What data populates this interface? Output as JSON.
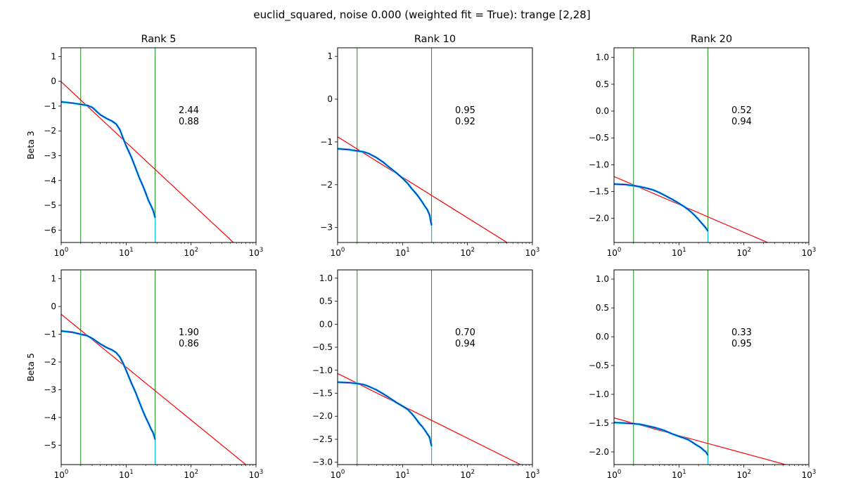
{
  "figure": {
    "suptitle": "euclid_squared, noise 0.000 (weighted fit = True): trange [2,28]"
  },
  "colors": {
    "fit_line": "#ff0000",
    "range_line": "#008000",
    "data_line": "#00008b",
    "data_band": "#00bfff"
  },
  "chart_data": [
    {
      "type": "line",
      "title": "Rank 5",
      "ylabel": "Beta 3",
      "xscale": "log",
      "xlim": [
        1,
        1000
      ],
      "ylim": [
        -6.5,
        1.35
      ],
      "yticks": [
        1,
        0,
        -1,
        -2,
        -3,
        -4,
        -5,
        -6
      ],
      "xticks": [
        1,
        10,
        100,
        1000
      ],
      "xticklabels": [
        "10^0",
        "10^1",
        "10^2",
        "10^3"
      ],
      "vlines": [
        2,
        28
      ],
      "fit_line": {
        "x": [
          1,
          1000
        ],
        "y": [
          -0.02,
          -7.35
        ]
      },
      "curve": {
        "x": [
          1,
          1.5,
          2,
          2.5,
          3,
          4,
          5,
          6,
          7,
          8,
          9,
          10,
          12,
          14,
          16,
          18,
          20,
          22,
          24,
          26,
          28
        ],
        "y": [
          -0.83,
          -0.88,
          -0.93,
          -0.97,
          -1.05,
          -1.35,
          -1.5,
          -1.6,
          -1.72,
          -1.95,
          -2.3,
          -2.6,
          -3.05,
          -3.5,
          -3.9,
          -4.2,
          -4.5,
          -4.8,
          -5.0,
          -5.2,
          -5.5
        ]
      },
      "annotation": [
        "2.44",
        "0.88"
      ]
    },
    {
      "type": "line",
      "title": "Rank 10",
      "ylabel": "",
      "xscale": "log",
      "xlim": [
        1,
        1000
      ],
      "ylim": [
        -3.35,
        1.2
      ],
      "yticks": [
        1,
        0,
        -1,
        -2,
        -3
      ],
      "xticks": [
        1,
        10,
        100,
        1000
      ],
      "xticklabels": [
        "10^0",
        "10^1",
        "10^2",
        "10^3"
      ],
      "vlines": [
        2,
        28
      ],
      "fit_line": {
        "x": [
          1,
          1000
        ],
        "y": [
          -0.88,
          -3.72
        ]
      },
      "curve": {
        "x": [
          1,
          1.5,
          2,
          2.5,
          3,
          4,
          5,
          6,
          8,
          10,
          12,
          14,
          16,
          18,
          20,
          22,
          24,
          26,
          28
        ],
        "y": [
          -1.16,
          -1.18,
          -1.21,
          -1.23,
          -1.27,
          -1.37,
          -1.47,
          -1.57,
          -1.72,
          -1.85,
          -1.97,
          -2.1,
          -2.2,
          -2.3,
          -2.4,
          -2.5,
          -2.58,
          -2.7,
          -2.95
        ]
      },
      "annotation": [
        "0.95",
        "0.92"
      ]
    },
    {
      "type": "line",
      "title": "Rank 20",
      "ylabel": "",
      "xscale": "log",
      "xlim": [
        1,
        1000
      ],
      "ylim": [
        -2.45,
        1.18
      ],
      "yticks": [
        1.0,
        0.5,
        0.0,
        -0.5,
        -1.0,
        -1.5,
        -2.0
      ],
      "ytickformat": "1f",
      "xticks": [
        1,
        10,
        100,
        1000
      ],
      "xticklabels": [
        "10^0",
        "10^1",
        "10^2",
        "10^3"
      ],
      "vlines": [
        2,
        28
      ],
      "fit_line": {
        "x": [
          1,
          1000
        ],
        "y": [
          -1.22,
          -2.78
        ]
      },
      "curve": {
        "x": [
          1,
          1.5,
          2,
          2.5,
          3,
          4,
          5,
          6,
          8,
          10,
          12,
          14,
          16,
          18,
          20,
          22,
          24,
          26,
          28
        ],
        "y": [
          -1.36,
          -1.37,
          -1.39,
          -1.41,
          -1.43,
          -1.47,
          -1.52,
          -1.57,
          -1.65,
          -1.72,
          -1.78,
          -1.84,
          -1.9,
          -1.96,
          -2.02,
          -2.08,
          -2.13,
          -2.18,
          -2.24
        ]
      },
      "annotation": [
        "0.52",
        "0.94"
      ]
    },
    {
      "type": "line",
      "title": "",
      "ylabel": "Beta 5",
      "xscale": "log",
      "xlim": [
        1,
        1000
      ],
      "ylim": [
        -5.7,
        1.32
      ],
      "yticks": [
        1,
        0,
        -1,
        -2,
        -3,
        -4,
        -5
      ],
      "xticks": [
        1,
        10,
        100,
        1000
      ],
      "xticklabels": [
        "10^0",
        "10^1",
        "10^2",
        "10^3"
      ],
      "vlines": [
        2,
        28
      ],
      "fit_line": {
        "x": [
          1,
          1000
        ],
        "y": [
          -0.28,
          -6.0
        ]
      },
      "curve": {
        "x": [
          1,
          1.5,
          2,
          2.5,
          3,
          4,
          5,
          6,
          7,
          8,
          9,
          10,
          12,
          14,
          16,
          18,
          20,
          22,
          24,
          26,
          28
        ],
        "y": [
          -0.88,
          -0.93,
          -1.0,
          -1.05,
          -1.15,
          -1.35,
          -1.48,
          -1.56,
          -1.66,
          -1.82,
          -2.05,
          -2.3,
          -2.75,
          -3.1,
          -3.45,
          -3.75,
          -4.0,
          -4.2,
          -4.4,
          -4.55,
          -4.8
        ]
      },
      "annotation": [
        "1.90",
        "0.86"
      ]
    },
    {
      "type": "line",
      "title": "",
      "ylabel": "",
      "xscale": "log",
      "xlim": [
        1,
        1000
      ],
      "ylim": [
        -3.05,
        1.18
      ],
      "yticks": [
        1.0,
        0.5,
        0.0,
        -0.5,
        -1.0,
        -1.5,
        -2.0,
        -2.5,
        -3.0
      ],
      "ytickformat": "1f",
      "xticks": [
        1,
        10,
        100,
        1000
      ],
      "xticklabels": [
        "10^0",
        "10^1",
        "10^2",
        "10^3"
      ],
      "vlines": [
        2,
        28
      ],
      "fit_line": {
        "x": [
          1,
          1000
        ],
        "y": [
          -1.07,
          -3.18
        ]
      },
      "curve": {
        "x": [
          1,
          1.5,
          2,
          2.5,
          3,
          4,
          5,
          6,
          8,
          10,
          12,
          14,
          16,
          18,
          20,
          22,
          24,
          26,
          28
        ],
        "y": [
          -1.26,
          -1.27,
          -1.29,
          -1.31,
          -1.35,
          -1.43,
          -1.51,
          -1.58,
          -1.7,
          -1.78,
          -1.85,
          -1.95,
          -2.05,
          -2.15,
          -2.22,
          -2.3,
          -2.38,
          -2.45,
          -2.65
        ]
      },
      "annotation": [
        "0.70",
        "0.94"
      ]
    },
    {
      "type": "line",
      "title": "",
      "ylabel": "",
      "xscale": "log",
      "xlim": [
        1,
        1000
      ],
      "ylim": [
        -2.22,
        1.16
      ],
      "yticks": [
        1.0,
        0.5,
        0.0,
        -0.5,
        -1.0,
        -1.5,
        -2.0
      ],
      "ytickformat": "1f",
      "xticks": [
        1,
        10,
        100,
        1000
      ],
      "xticklabels": [
        "10^0",
        "10^1",
        "10^2",
        "10^3"
      ],
      "vlines": [
        2,
        28
      ],
      "fit_line": {
        "x": [
          1,
          1000
        ],
        "y": [
          -1.41,
          -2.33
        ]
      },
      "curve": {
        "x": [
          1,
          1.5,
          2,
          2.5,
          3,
          4,
          5,
          6,
          8,
          10,
          12,
          14,
          16,
          18,
          20,
          22,
          24,
          26,
          28
        ],
        "y": [
          -1.49,
          -1.5,
          -1.51,
          -1.52,
          -1.54,
          -1.57,
          -1.6,
          -1.63,
          -1.69,
          -1.73,
          -1.76,
          -1.79,
          -1.83,
          -1.87,
          -1.9,
          -1.93,
          -1.97,
          -2.0,
          -2.06
        ]
      },
      "annotation": [
        "0.33",
        "0.95"
      ]
    }
  ]
}
